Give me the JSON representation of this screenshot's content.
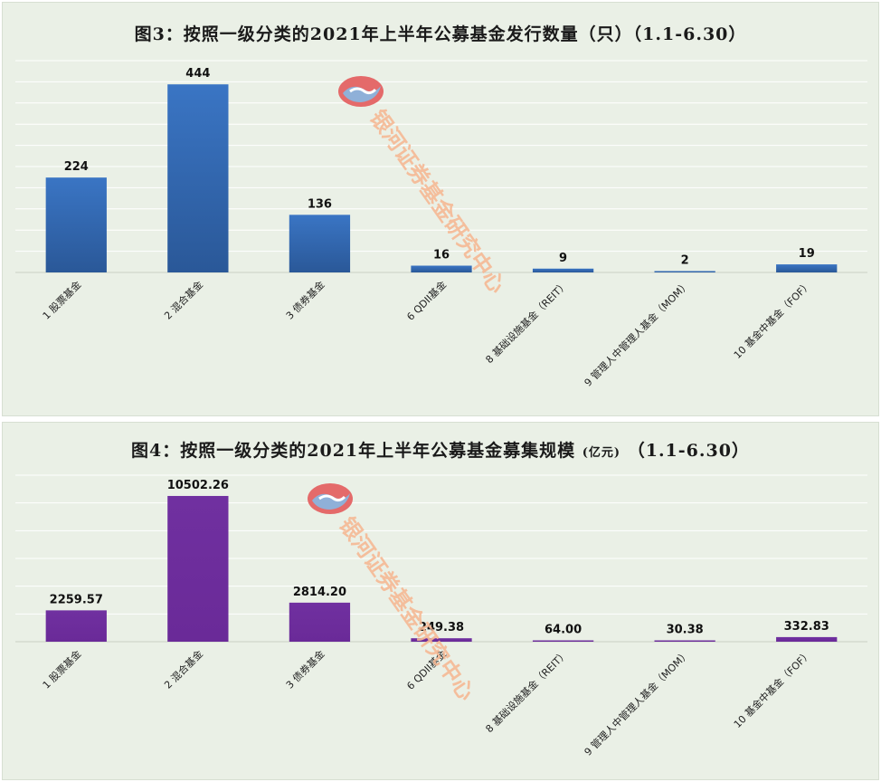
{
  "charts": [
    {
      "title": "图3：按照一级分类的2021年上半年公募基金发行数量（只）（1.1-6.30）",
      "chart_data": {
        "type": "bar",
        "categories": [
          "1 股票基金",
          "2 混合基金",
          "3 债券基金",
          "6 QDII基金",
          "8 基础设施基金（REIT）",
          "9 管理人中管理人基金（MOM）",
          "10 基金中基金（FOF）"
        ],
        "values": [
          224,
          444,
          136,
          16,
          9,
          2,
          19
        ],
        "value_labels": [
          "224",
          "444",
          "136",
          "16",
          "9",
          "2",
          "19"
        ],
        "ylim": [
          0,
          500
        ],
        "grid": true,
        "bar_color": "#3a75c4"
      }
    },
    {
      "title_main": "图4：按照一级分类的2021年上半年公募基金募集规模",
      "title_unit": "(亿元)",
      "title_range": "（1.1-6.30）",
      "chart_data": {
        "type": "bar",
        "categories": [
          "1 股票基金",
          "2 混合基金",
          "3 债券基金",
          "6 QDII基金",
          "8 基础设施基金（REIT）",
          "9 管理人中管理人基金（MOM）",
          "10 基金中基金（FOF）"
        ],
        "values": [
          2259.57,
          10502.26,
          2814.2,
          249.38,
          64.0,
          30.38,
          332.83
        ],
        "value_labels": [
          "2259.57",
          "10502.26",
          "2814.20",
          "249.38",
          "64.00",
          "30.38",
          "332.83"
        ],
        "ylim": [
          0,
          12000
        ],
        "grid": true,
        "bar_color": "#7030a0"
      }
    }
  ],
  "watermark": "银河证券基金研究中心"
}
